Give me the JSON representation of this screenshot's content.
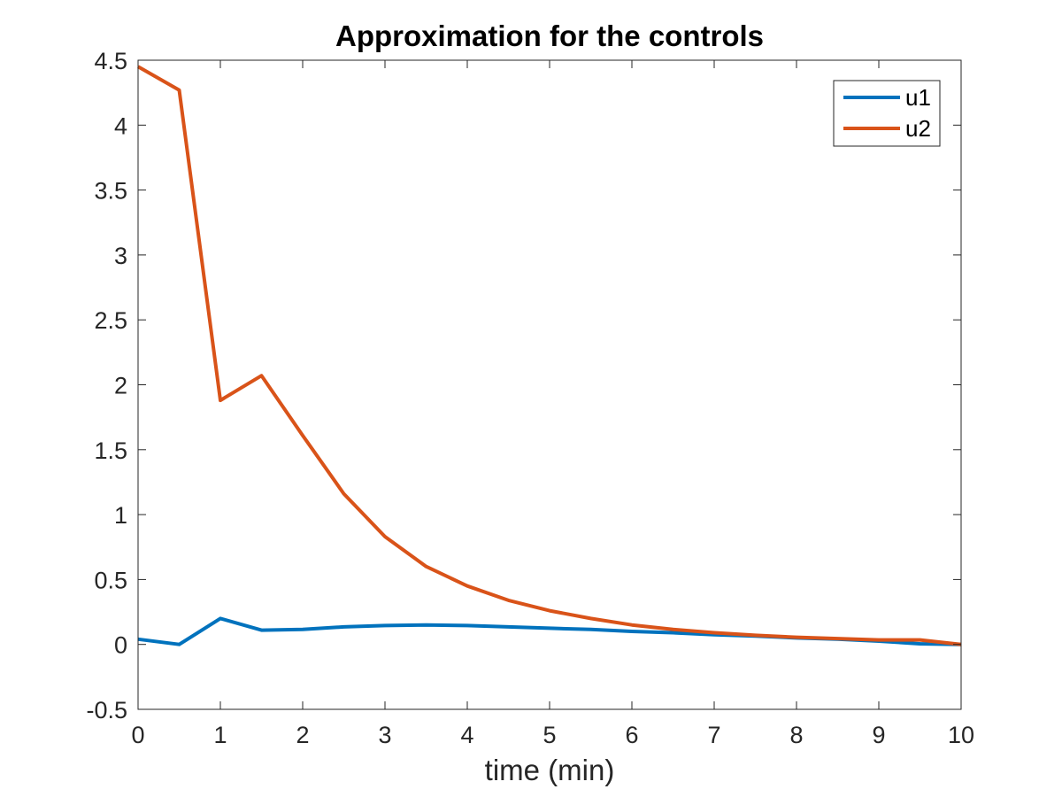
{
  "chart_data": {
    "type": "line",
    "title": "Approximation for the controls",
    "xlabel": "time (min)",
    "ylabel": "",
    "xlim": [
      0,
      10
    ],
    "ylim": [
      -0.5,
      4.5
    ],
    "xticks": [
      0,
      1,
      2,
      3,
      4,
      5,
      6,
      7,
      8,
      9,
      10
    ],
    "xtick_labels": [
      "0",
      "1",
      "2",
      "3",
      "4",
      "5",
      "6",
      "7",
      "8",
      "9",
      "10"
    ],
    "yticks": [
      -0.5,
      0,
      0.5,
      1,
      1.5,
      2,
      2.5,
      3,
      3.5,
      4,
      4.5
    ],
    "ytick_labels": [
      "-0.5",
      "0",
      "0.5",
      "1",
      "1.5",
      "2",
      "2.5",
      "3",
      "3.5",
      "4",
      "4.5"
    ],
    "grid": false,
    "legend_position": "top-right",
    "x": [
      0,
      0.5,
      1,
      1.5,
      2,
      2.5,
      3,
      3.5,
      4,
      4.5,
      5,
      5.5,
      6,
      6.5,
      7,
      7.5,
      8,
      8.5,
      9,
      9.5,
      10
    ],
    "series": [
      {
        "name": "u1",
        "color": "#0072BD",
        "values": [
          0.04,
          0.0,
          0.2,
          0.11,
          0.115,
          0.135,
          0.145,
          0.15,
          0.145,
          0.135,
          0.125,
          0.115,
          0.1,
          0.09,
          0.075,
          0.065,
          0.05,
          0.04,
          0.025,
          0.005,
          0.0
        ]
      },
      {
        "name": "u2",
        "color": "#D95319",
        "values": [
          4.45,
          4.27,
          1.88,
          2.07,
          1.61,
          1.16,
          0.83,
          0.6,
          0.45,
          0.34,
          0.26,
          0.2,
          0.15,
          0.115,
          0.09,
          0.07,
          0.055,
          0.045,
          0.035,
          0.035,
          0.0
        ]
      }
    ]
  }
}
